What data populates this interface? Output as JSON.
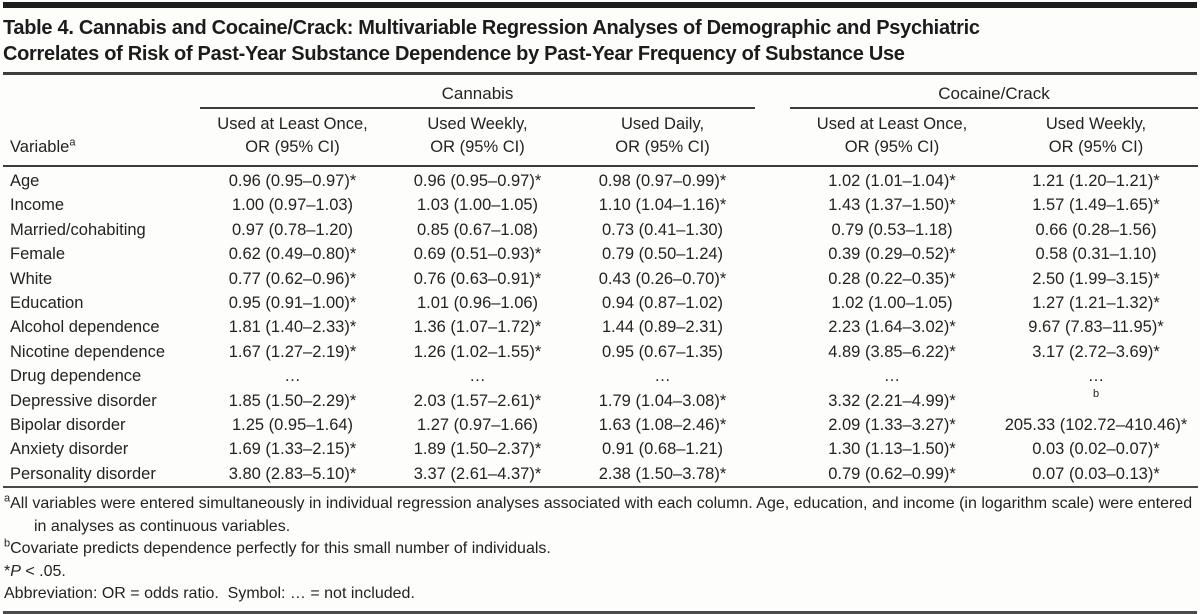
{
  "title": {
    "line1": "Table 4. Cannabis and Cocaine/Crack: Multivariable Regression Analyses of Demographic and Psychiatric",
    "line2": "Correlates of Risk of Past-Year Substance Dependence by Past-Year Frequency of Substance Use"
  },
  "table": {
    "groups": [
      {
        "label": "Cannabis"
      },
      {
        "label": "Cocaine/Crack"
      }
    ],
    "variable_header": {
      "label": "Variable",
      "sup": "a"
    },
    "columns": [
      {
        "line1": "Used at Least Once,",
        "line2": "OR (95% CI)"
      },
      {
        "line1": "Used Weekly,",
        "line2": "OR (95% CI)"
      },
      {
        "line1": "Used Daily,",
        "line2": "OR (95% CI)"
      },
      {
        "line1": "Used at Least Once,",
        "line2": "OR (95% CI)"
      },
      {
        "line1": "Used Weekly,",
        "line2": "OR (95% CI)"
      }
    ],
    "rows": [
      {
        "variable": "Age",
        "values": [
          "0.96 (0.95–0.97)*",
          "0.96 (0.95–0.97)*",
          "0.98 (0.97–0.99)*",
          "1.02 (1.01–1.04)*",
          "1.21 (1.20–1.21)*"
        ]
      },
      {
        "variable": "Income",
        "values": [
          "1.00 (0.97–1.03)",
          "1.03 (1.00–1.05)",
          "1.10 (1.04–1.16)*",
          "1.43 (1.37–1.50)*",
          "1.57 (1.49–1.65)*"
        ]
      },
      {
        "variable": "Married/cohabiting",
        "values": [
          "0.97 (0.78–1.20)",
          "0.85 (0.67–1.08)",
          "0.73 (0.41–1.30)",
          "0.79 (0.53–1.18)",
          "0.66 (0.28–1.56)"
        ]
      },
      {
        "variable": "Female",
        "values": [
          "0.62 (0.49–0.80)*",
          "0.69 (0.51–0.93)*",
          "0.79 (0.50–1.24)",
          "0.39 (0.29–0.52)*",
          "0.58 (0.31–1.10)"
        ]
      },
      {
        "variable": "White",
        "values": [
          "0.77 (0.62–0.96)*",
          "0.76 (0.63–0.91)*",
          "0.43 (0.26–0.70)*",
          "0.28 (0.22–0.35)*",
          "2.50 (1.99–3.15)*"
        ]
      },
      {
        "variable": "Education",
        "values": [
          "0.95 (0.91–1.00)*",
          "1.01 (0.96–1.06)",
          "0.94 (0.87–1.02)",
          "1.02 (1.00–1.05)",
          "1.27 (1.21–1.32)*"
        ]
      },
      {
        "variable": "Alcohol dependence",
        "values": [
          "1.81 (1.40–2.33)*",
          "1.36 (1.07–1.72)*",
          "1.44 (0.89–2.31)",
          "2.23 (1.64–3.02)*",
          "9.67 (7.83–11.95)*"
        ]
      },
      {
        "variable": "Nicotine dependence",
        "values": [
          "1.67 (1.27–2.19)*",
          "1.26 (1.02–1.55)*",
          "0.95 (0.67–1.35)",
          "4.89 (3.85–6.22)*",
          "3.17 (2.72–3.69)*"
        ]
      },
      {
        "variable": "Drug dependence",
        "values": [
          "…",
          "…",
          "…",
          "…",
          "…"
        ]
      },
      {
        "variable": "Depressive disorder",
        "values": [
          "1.85 (1.50–2.29)*",
          "2.03 (1.57–2.61)*",
          "1.79 (1.04–3.08)*",
          "3.32 (2.21–4.99)*",
          {
            "sup": "b"
          }
        ]
      },
      {
        "variable": "Bipolar disorder",
        "values": [
          "1.25 (0.95–1.64)",
          "1.27 (0.97–1.66)",
          "1.63 (1.08–2.46)*",
          "2.09 (1.33–3.27)*",
          "205.33 (102.72–410.46)*"
        ]
      },
      {
        "variable": "Anxiety disorder",
        "values": [
          "1.69 (1.33–2.15)*",
          "1.89 (1.50–2.37)*",
          "0.91 (0.68–1.21)",
          "1.30 (1.13–1.50)*",
          "0.03 (0.02–0.07)*"
        ]
      },
      {
        "variable": "Personality disorder",
        "values": [
          "3.80 (2.83–5.10)*",
          "3.37 (2.61–4.37)*",
          "2.38 (1.50–3.78)*",
          "0.79 (0.62–0.99)*",
          "0.07 (0.03–0.13)*"
        ]
      }
    ]
  },
  "footnotes": {
    "a": {
      "marker": "a",
      "text": "All variables were entered simultaneously in individual regression analyses associated with each column. Age, education, and income (in logarithm scale) were entered in analyses as continuous variables."
    },
    "b": {
      "marker": "b",
      "text": "Covariate predicts dependence perfectly for this small number of individuals."
    },
    "star": {
      "marker": "*",
      "var": "P",
      "rest": " < .05."
    },
    "abbr": {
      "text": "Abbreviation: OR = odds ratio.  Symbol: … = not included."
    }
  }
}
